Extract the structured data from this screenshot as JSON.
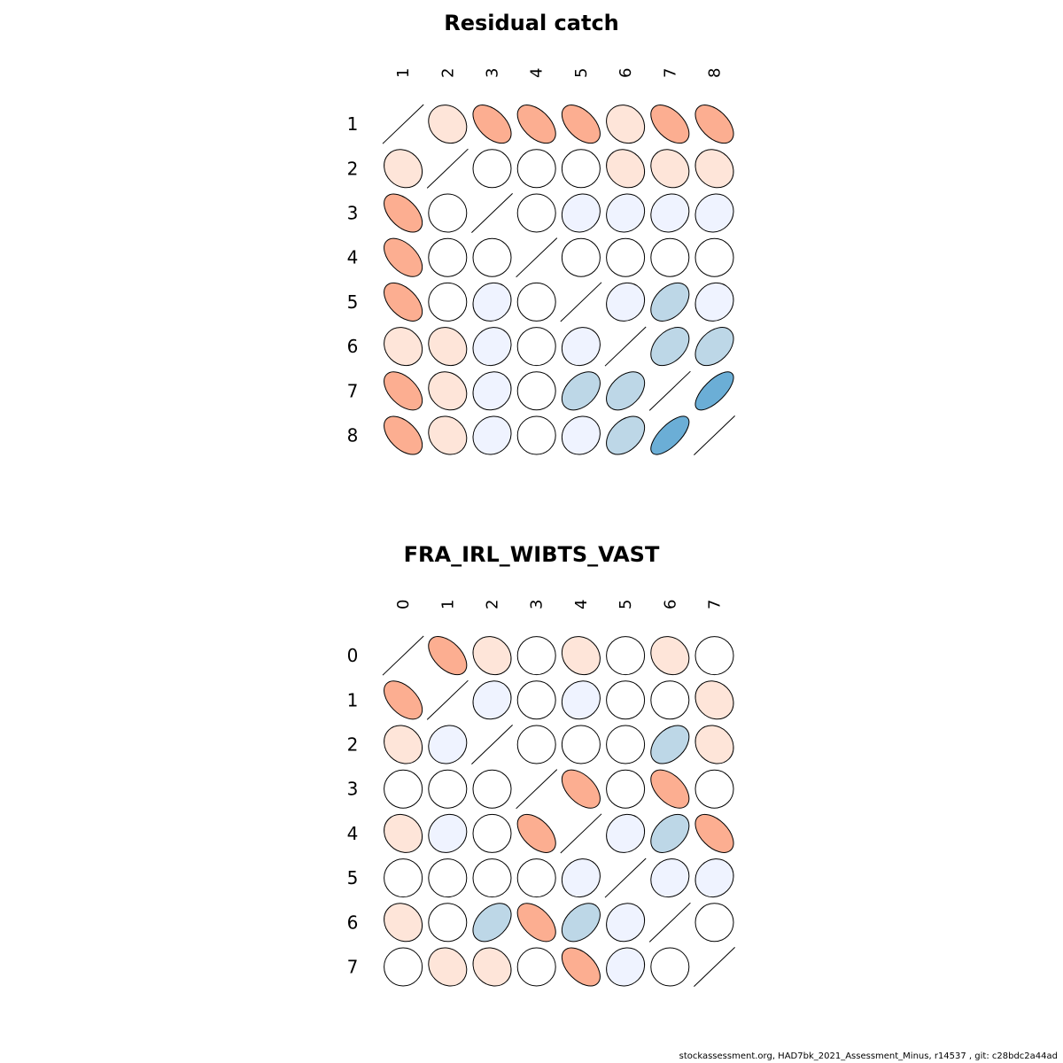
{
  "footer": "stockassessment.org, HAD7bk_2021_Assessment_Minus, r14537 , git: c28bdc2a44ad",
  "chart_data": [
    {
      "type": "heatmap",
      "title": "Residual catch",
      "labels": [
        "1",
        "2",
        "3",
        "4",
        "5",
        "6",
        "7",
        "8"
      ],
      "diagonal": "line",
      "matrix": [
        [
          1,
          0.15,
          0.5,
          0.5,
          0.5,
          0.15,
          0.5,
          0.5
        ],
        [
          0.15,
          1,
          0,
          0,
          0,
          0.15,
          0.15,
          0.15
        ],
        [
          0.5,
          0,
          1,
          0,
          -0.1,
          -0.1,
          -0.1,
          -0.1
        ],
        [
          0.5,
          0,
          0,
          1,
          0,
          0,
          0,
          0
        ],
        [
          0.5,
          0,
          -0.1,
          0,
          1,
          -0.1,
          -0.4,
          -0.1
        ],
        [
          0.15,
          0.15,
          -0.1,
          0,
          -0.1,
          1,
          -0.4,
          -0.4
        ],
        [
          0.5,
          0.15,
          -0.1,
          0,
          -0.4,
          -0.4,
          1,
          -0.7
        ],
        [
          0.5,
          0.15,
          -0.1,
          0,
          -0.1,
          -0.4,
          -0.7,
          1
        ]
      ]
    },
    {
      "type": "heatmap",
      "title": "FRA_IRL_WIBTS_VAST",
      "labels": [
        "0",
        "1",
        "2",
        "3",
        "4",
        "5",
        "6",
        "7"
      ],
      "diagonal": "line",
      "matrix": [
        [
          1,
          0.5,
          0.15,
          0,
          0.15,
          0,
          0.15,
          0
        ],
        [
          0.5,
          1,
          -0.1,
          0,
          -0.1,
          0,
          0,
          0.15
        ],
        [
          0.15,
          -0.1,
          1,
          0,
          0,
          0,
          -0.4,
          0.15
        ],
        [
          0,
          0,
          0,
          1,
          0.5,
          0,
          0.5,
          0
        ],
        [
          0.15,
          -0.1,
          0,
          0.5,
          1,
          -0.1,
          -0.4,
          0.5
        ],
        [
          0,
          0,
          0,
          0,
          -0.1,
          1,
          -0.1,
          -0.1
        ],
        [
          0.15,
          0,
          -0.4,
          0.5,
          -0.4,
          -0.1,
          1,
          0
        ],
        [
          0,
          0.15,
          0.15,
          0,
          0.5,
          -0.1,
          0,
          1
        ]
      ]
    }
  ]
}
